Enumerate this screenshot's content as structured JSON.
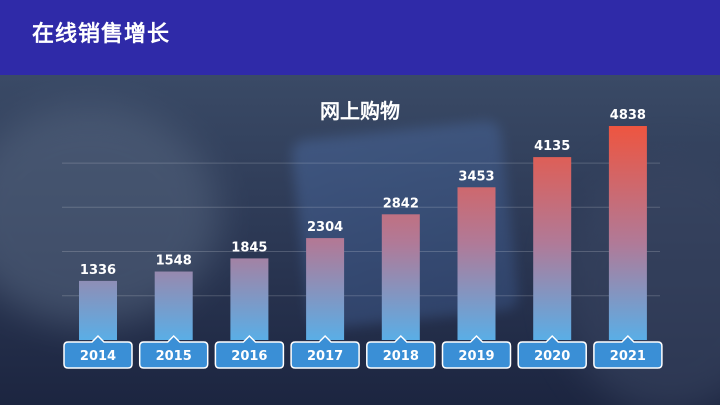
{
  "header": {
    "title": "在线销售增长"
  },
  "chart_data": {
    "type": "bar",
    "title": "网上购物",
    "categories": [
      "2014",
      "2015",
      "2016",
      "2017",
      "2018",
      "2019",
      "2020",
      "2021"
    ],
    "values": [
      1336,
      1548,
      1845,
      2304,
      2842,
      3453,
      4135,
      4838
    ],
    "ylim": [
      0,
      5200
    ],
    "grid": true,
    "colors": {
      "bar_top": "#ee5540",
      "bar_bottom": "#5aaee6",
      "label_box": "#3a8fd6"
    }
  }
}
